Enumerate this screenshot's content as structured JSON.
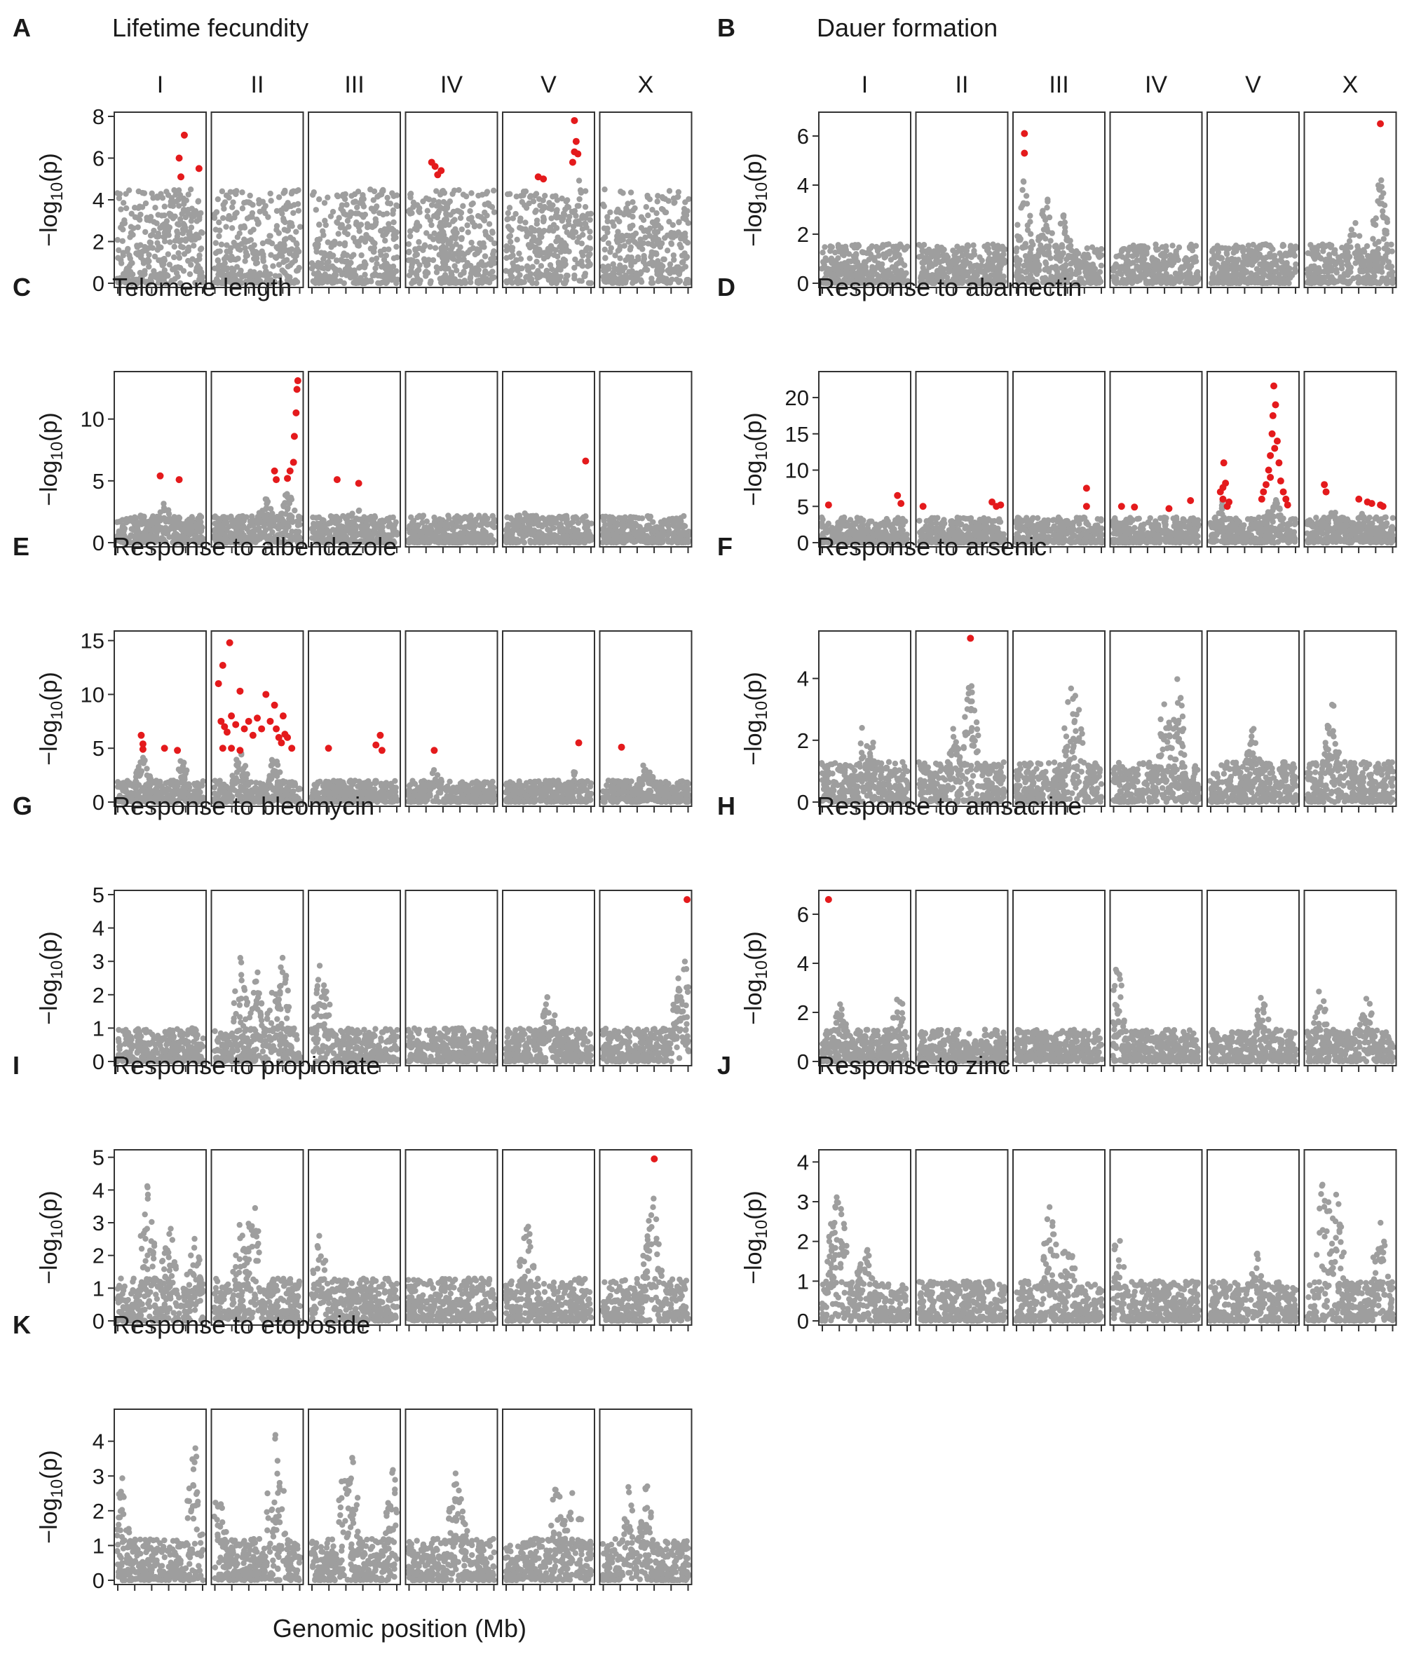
{
  "figure": {
    "x_axis_label": "Genomic position (Mb)",
    "chromosomes": [
      "I",
      "II",
      "III",
      "IV",
      "V",
      "X"
    ],
    "y_axis_label": {
      "prefix": "−log",
      "subscript": "10",
      "suffix": "(p)"
    }
  },
  "colors": {
    "significant": "#e41a1c",
    "nonsignificant": "#9e9e9e",
    "frame": "#333333"
  },
  "chart_data": [
    {
      "letter": "A",
      "title": "Lifetime fecundity",
      "type": "scatter",
      "show_chrom_labels": true,
      "ylim": [
        0,
        8
      ],
      "yticks": [
        0,
        2,
        4,
        6,
        8
      ],
      "base_max": 4.5,
      "peaks": [
        [
          0,
          0.79,
          4.4
        ],
        [
          0,
          0.85,
          4.5
        ],
        [
          3,
          0.33,
          4.2
        ],
        [
          4,
          0.82,
          6.0
        ],
        [
          4,
          0.44,
          4.1
        ],
        [
          5,
          0.55,
          3.6
        ],
        [
          5,
          0.9,
          3.8
        ]
      ],
      "significant": [
        [
          0,
          0.72,
          6.0
        ],
        [
          0,
          0.78,
          7.1
        ],
        [
          0,
          0.74,
          5.1
        ],
        [
          0,
          0.95,
          5.5
        ],
        [
          3,
          0.27,
          5.8
        ],
        [
          3,
          0.31,
          5.6
        ],
        [
          3,
          0.38,
          5.4
        ],
        [
          3,
          0.34,
          5.2
        ],
        [
          4,
          0.38,
          5.1
        ],
        [
          4,
          0.44,
          5.0
        ],
        [
          4,
          0.78,
          5.8
        ],
        [
          4,
          0.8,
          6.3
        ],
        [
          4,
          0.82,
          6.8
        ],
        [
          4,
          0.84,
          6.2
        ],
        [
          4,
          0.8,
          7.8
        ]
      ]
    },
    {
      "letter": "B",
      "title": "Dauer formation",
      "type": "scatter",
      "show_chrom_labels": true,
      "ylim": [
        0,
        6.8
      ],
      "yticks": [
        0,
        2,
        4,
        6
      ],
      "base_max": 1.6,
      "peaks": [
        [
          2,
          0.1,
          4.5
        ],
        [
          2,
          0.35,
          3.8
        ],
        [
          2,
          0.55,
          3.0
        ],
        [
          5,
          0.85,
          4.6
        ],
        [
          5,
          0.55,
          2.8
        ]
      ],
      "significant": [
        [
          2,
          0.1,
          6.1
        ],
        [
          2,
          0.1,
          5.3
        ],
        [
          5,
          0.85,
          6.5
        ]
      ]
    },
    {
      "letter": "C",
      "title": "Telomere length",
      "type": "scatter",
      "show_chrom_labels": false,
      "ylim": [
        0,
        13.5
      ],
      "yticks": [
        0,
        5,
        10
      ],
      "base_max": 2.2,
      "peaks": [
        [
          0,
          0.55,
          3.5
        ],
        [
          1,
          0.85,
          4.6
        ],
        [
          1,
          0.6,
          4.0
        ],
        [
          2,
          0.5,
          3.6
        ],
        [
          4,
          0.25,
          3.0
        ]
      ],
      "significant": [
        [
          0,
          0.5,
          5.4
        ],
        [
          0,
          0.72,
          5.1
        ],
        [
          1,
          0.7,
          5.8
        ],
        [
          1,
          0.72,
          5.1
        ],
        [
          1,
          0.85,
          5.2
        ],
        [
          1,
          0.88,
          5.8
        ],
        [
          1,
          0.92,
          6.5
        ],
        [
          1,
          0.93,
          8.6
        ],
        [
          1,
          0.95,
          10.5
        ],
        [
          1,
          0.96,
          12.4
        ],
        [
          1,
          0.97,
          13.1
        ],
        [
          2,
          0.3,
          5.1
        ],
        [
          2,
          0.55,
          4.8
        ],
        [
          4,
          0.93,
          6.6
        ]
      ]
    },
    {
      "letter": "D",
      "title": "Response to abamectin",
      "type": "scatter",
      "show_chrom_labels": false,
      "ylim": [
        0,
        23
      ],
      "yticks": [
        0,
        5,
        10,
        15,
        20
      ],
      "base_max": 3.5,
      "peaks": [
        [
          4,
          0.15,
          6.0
        ],
        [
          4,
          0.75,
          7.0
        ],
        [
          5,
          0.3,
          5.0
        ],
        [
          5,
          0.65,
          4.5
        ]
      ],
      "significant": [
        [
          0,
          0.08,
          5.2
        ],
        [
          0,
          0.88,
          6.5
        ],
        [
          0,
          0.92,
          5.4
        ],
        [
          1,
          0.05,
          5.0
        ],
        [
          1,
          0.85,
          5.6
        ],
        [
          1,
          0.9,
          5.0
        ],
        [
          1,
          0.95,
          5.2
        ],
        [
          2,
          0.82,
          7.5
        ],
        [
          2,
          0.82,
          5.0
        ],
        [
          3,
          0.1,
          5.0
        ],
        [
          3,
          0.25,
          4.9
        ],
        [
          3,
          0.65,
          4.7
        ],
        [
          3,
          0.9,
          5.8
        ],
        [
          4,
          0.15,
          6.0
        ],
        [
          4,
          0.15,
          7.6
        ],
        [
          4,
          0.18,
          8.2
        ],
        [
          4,
          0.12,
          7.0
        ],
        [
          4,
          0.16,
          11.0
        ],
        [
          4,
          0.22,
          5.6
        ],
        [
          4,
          0.2,
          5.0
        ],
        [
          4,
          0.6,
          6.0
        ],
        [
          4,
          0.65,
          8.0
        ],
        [
          4,
          0.68,
          10.0
        ],
        [
          4,
          0.7,
          12.0
        ],
        [
          4,
          0.72,
          15.0
        ],
        [
          4,
          0.73,
          17.5
        ],
        [
          4,
          0.74,
          21.6
        ],
        [
          4,
          0.76,
          19.0
        ],
        [
          4,
          0.78,
          14.0
        ],
        [
          4,
          0.8,
          11.0
        ],
        [
          4,
          0.82,
          8.5
        ],
        [
          4,
          0.85,
          7.0
        ],
        [
          4,
          0.88,
          6.0
        ],
        [
          4,
          0.9,
          5.2
        ],
        [
          4,
          0.7,
          9.0
        ],
        [
          4,
          0.75,
          13.0
        ],
        [
          4,
          0.62,
          7.0
        ],
        [
          5,
          0.2,
          8.0
        ],
        [
          5,
          0.22,
          7.0
        ],
        [
          5,
          0.6,
          6.0
        ],
        [
          5,
          0.7,
          5.6
        ],
        [
          5,
          0.75,
          5.4
        ],
        [
          5,
          0.85,
          5.2
        ],
        [
          5,
          0.88,
          5.0
        ]
      ]
    },
    {
      "letter": "E",
      "title": "Response to albendazole",
      "type": "scatter",
      "show_chrom_labels": false,
      "ylim": [
        0,
        15.5
      ],
      "yticks": [
        0,
        5,
        10,
        15
      ],
      "base_max": 2.0,
      "peaks": [
        [
          0,
          0.3,
          4.5
        ],
        [
          0,
          0.75,
          4.2
        ],
        [
          1,
          0.3,
          5.0
        ],
        [
          1,
          0.7,
          4.8
        ],
        [
          3,
          0.3,
          3.5
        ],
        [
          4,
          0.8,
          3.0
        ],
        [
          5,
          0.5,
          4.0
        ]
      ],
      "significant": [
        [
          0,
          0.28,
          6.2
        ],
        [
          0,
          0.3,
          5.4
        ],
        [
          0,
          0.3,
          4.9
        ],
        [
          0,
          0.55,
          5.0
        ],
        [
          0,
          0.7,
          4.8
        ],
        [
          1,
          0.05,
          11.0
        ],
        [
          1,
          0.1,
          12.7
        ],
        [
          1,
          0.18,
          14.8
        ],
        [
          1,
          0.08,
          7.5
        ],
        [
          1,
          0.12,
          7.0
        ],
        [
          1,
          0.15,
          6.5
        ],
        [
          1,
          0.2,
          8.0
        ],
        [
          1,
          0.25,
          7.2
        ],
        [
          1,
          0.3,
          10.3
        ],
        [
          1,
          0.35,
          6.8
        ],
        [
          1,
          0.4,
          7.5
        ],
        [
          1,
          0.45,
          6.2
        ],
        [
          1,
          0.5,
          7.8
        ],
        [
          1,
          0.55,
          6.8
        ],
        [
          1,
          0.6,
          10.0
        ],
        [
          1,
          0.65,
          7.5
        ],
        [
          1,
          0.7,
          9.0
        ],
        [
          1,
          0.72,
          6.8
        ],
        [
          1,
          0.75,
          6.0
        ],
        [
          1,
          0.78,
          5.5
        ],
        [
          1,
          0.8,
          8.0
        ],
        [
          1,
          0.82,
          6.3
        ],
        [
          1,
          0.85,
          6.0
        ],
        [
          1,
          0.1,
          5.0
        ],
        [
          1,
          0.2,
          5.0
        ],
        [
          1,
          0.3,
          4.8
        ],
        [
          1,
          0.9,
          5.0
        ],
        [
          2,
          0.2,
          5.0
        ],
        [
          2,
          0.75,
          5.3
        ],
        [
          2,
          0.8,
          6.2
        ],
        [
          2,
          0.82,
          4.8
        ],
        [
          3,
          0.3,
          4.8
        ],
        [
          4,
          0.85,
          5.5
        ],
        [
          5,
          0.22,
          5.1
        ]
      ]
    },
    {
      "letter": "F",
      "title": "Response to arsenic",
      "type": "scatter",
      "show_chrom_labels": false,
      "ylim": [
        0,
        5.4
      ],
      "yticks": [
        0,
        2,
        4
      ],
      "base_max": 1.3,
      "peaks": [
        [
          0,
          0.5,
          2.9
        ],
        [
          0,
          0.6,
          2.0
        ],
        [
          1,
          0.6,
          4.1
        ],
        [
          1,
          0.4,
          2.5
        ],
        [
          2,
          0.65,
          4.3
        ],
        [
          2,
          0.7,
          3.7
        ],
        [
          3,
          0.6,
          3.5
        ],
        [
          3,
          0.75,
          4.2
        ],
        [
          4,
          0.5,
          2.5
        ],
        [
          5,
          0.3,
          3.5
        ],
        [
          5,
          0.25,
          2.8
        ]
      ],
      "significant": [
        [
          1,
          0.6,
          5.3
        ]
      ]
    },
    {
      "letter": "G",
      "title": "Response to bleomycin",
      "type": "scatter",
      "show_chrom_labels": false,
      "ylim": [
        0,
        5
      ],
      "yticks": [
        0,
        1,
        2,
        3,
        4,
        5
      ],
      "base_max": 1.0,
      "peaks": [
        [
          1,
          0.3,
          3.3
        ],
        [
          1,
          0.5,
          2.8
        ],
        [
          1,
          0.8,
          3.3
        ],
        [
          1,
          0.7,
          2.5
        ],
        [
          2,
          0.1,
          3.0
        ],
        [
          2,
          0.15,
          2.6
        ],
        [
          4,
          0.5,
          2.4
        ],
        [
          5,
          0.95,
          3.5
        ],
        [
          5,
          0.9,
          2.8
        ],
        [
          5,
          0.85,
          2.0
        ]
      ],
      "significant": [
        [
          5,
          0.98,
          4.85
        ]
      ]
    },
    {
      "letter": "H",
      "title": "Response to amsacrine",
      "type": "scatter",
      "show_chrom_labels": false,
      "ylim": [
        0,
        6.8
      ],
      "yticks": [
        0,
        2,
        4,
        6
      ],
      "base_max": 1.3,
      "peaks": [
        [
          0,
          0.9,
          3.0
        ],
        [
          0,
          0.2,
          2.6
        ],
        [
          3,
          0.05,
          4.3
        ],
        [
          4,
          0.6,
          2.8
        ],
        [
          5,
          0.15,
          3.3
        ],
        [
          5,
          0.7,
          2.8
        ]
      ],
      "significant": [
        [
          0,
          0.08,
          6.6
        ]
      ]
    },
    {
      "letter": "I",
      "title": "Response to propionate",
      "type": "scatter",
      "show_chrom_labels": false,
      "ylim": [
        0,
        5.1
      ],
      "yticks": [
        0,
        1,
        2,
        3,
        4,
        5
      ],
      "base_max": 1.3,
      "peaks": [
        [
          0,
          0.35,
          4.2
        ],
        [
          0,
          0.6,
          3.3
        ],
        [
          0,
          0.9,
          2.6
        ],
        [
          1,
          0.45,
          4.0
        ],
        [
          1,
          0.3,
          3.2
        ],
        [
          2,
          0.1,
          2.7
        ],
        [
          4,
          0.25,
          3.3
        ],
        [
          5,
          0.6,
          4.0
        ],
        [
          5,
          0.55,
          3.3
        ]
      ],
      "significant": [
        [
          5,
          0.6,
          4.95
        ]
      ]
    },
    {
      "letter": "J",
      "title": "Response to zinc",
      "type": "scatter",
      "show_chrom_labels": false,
      "ylim": [
        0,
        4.2
      ],
      "yticks": [
        0,
        1,
        2,
        3,
        4
      ],
      "base_max": 1.0,
      "peaks": [
        [
          0,
          0.2,
          3.7
        ],
        [
          0,
          0.15,
          3.1
        ],
        [
          0,
          0.5,
          2.2
        ],
        [
          2,
          0.4,
          3.1
        ],
        [
          2,
          0.6,
          2.3
        ],
        [
          3,
          0.05,
          2.5
        ],
        [
          4,
          0.55,
          1.8
        ],
        [
          5,
          0.2,
          4.0
        ],
        [
          5,
          0.35,
          3.5
        ],
        [
          5,
          0.85,
          2.8
        ]
      ],
      "significant": []
    },
    {
      "letter": "K",
      "title": "Response to etoposide",
      "type": "scatter",
      "show_chrom_labels": false,
      "ylim": [
        0,
        4.8
      ],
      "yticks": [
        0,
        1,
        2,
        3,
        4
      ],
      "base_max": 1.2,
      "peaks": [
        [
          0,
          0.05,
          3.3
        ],
        [
          0,
          0.9,
          4.1
        ],
        [
          1,
          0.05,
          2.7
        ],
        [
          1,
          0.7,
          4.6
        ],
        [
          1,
          0.75,
          3.9
        ],
        [
          2,
          0.45,
          4.5
        ],
        [
          2,
          0.4,
          3.8
        ],
        [
          2,
          0.95,
          3.3
        ],
        [
          3,
          0.55,
          3.3
        ],
        [
          3,
          0.6,
          2.5
        ],
        [
          4,
          0.6,
          3.1
        ],
        [
          4,
          0.8,
          3.0
        ],
        [
          5,
          0.5,
          3.1
        ],
        [
          5,
          0.3,
          2.7
        ]
      ],
      "significant": []
    }
  ]
}
